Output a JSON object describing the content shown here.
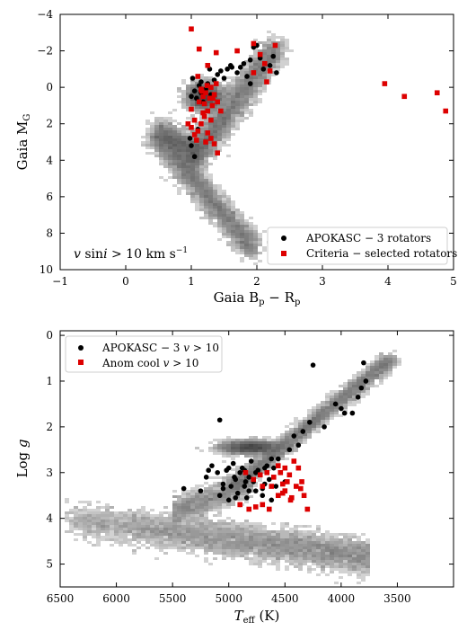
{
  "chart_data": [
    {
      "type": "scatter",
      "xlabel": "Gaia B_p − R_p",
      "ylabel": "Gaia M_G",
      "xlim": [
        -1,
        5
      ],
      "ylim": [
        10,
        -4
      ],
      "y_inverted": true,
      "xticks": [
        "−1",
        "0",
        "1",
        "2",
        "3",
        "4",
        "5"
      ],
      "yticks": [
        "−4",
        "−2",
        "0",
        "2",
        "4",
        "6",
        "8",
        "10"
      ],
      "annotation": "v sini > 10 km s⁻¹",
      "legend_position": "lower right",
      "background": "grayscale 2D density histogram (Gaia CMD: main sequence + red giant branch)",
      "series": [
        {
          "name": "APOKASC − 3 rotators",
          "marker": "circle",
          "color": "#000000",
          "points": [
            [
              1.0,
              0.5
            ],
            [
              1.05,
              0.2
            ],
            [
              1.08,
              0.6
            ],
            [
              1.12,
              -0.1
            ],
            [
              1.15,
              0.3
            ],
            [
              1.18,
              0.8
            ],
            [
              1.22,
              0.1
            ],
            [
              1.25,
              -0.2
            ],
            [
              1.3,
              0.4
            ],
            [
              1.35,
              -0.4
            ],
            [
              1.4,
              -0.7
            ],
            [
              1.45,
              -0.9
            ],
            [
              1.5,
              -0.5
            ],
            [
              1.55,
              -1.0
            ],
            [
              1.6,
              -1.2
            ],
            [
              1.7,
              -0.8
            ],
            [
              1.75,
              -1.1
            ],
            [
              1.8,
              -1.3
            ],
            [
              1.85,
              -0.6
            ],
            [
              1.9,
              -1.5
            ],
            [
              1.95,
              -2.2
            ],
            [
              2.0,
              -2.3
            ],
            [
              2.05,
              -1.6
            ],
            [
              2.1,
              -1.0
            ],
            [
              2.2,
              -1.2
            ],
            [
              2.25,
              -1.7
            ],
            [
              2.3,
              -0.8
            ],
            [
              1.9,
              -0.2
            ],
            [
              1.0,
              3.2
            ],
            [
              1.05,
              3.8
            ],
            [
              1.1,
              2.3
            ],
            [
              0.98,
              2.8
            ],
            [
              1.02,
              -0.5
            ],
            [
              1.15,
              -0.3
            ],
            [
              1.28,
              -1.0
            ],
            [
              1.62,
              -1.1
            ]
          ]
        },
        {
          "name": "Criteria − selected rotators",
          "marker": "square",
          "color": "#dd0000",
          "points": [
            [
              1.0,
              -3.2
            ],
            [
              1.12,
              -2.1
            ],
            [
              1.25,
              -1.2
            ],
            [
              1.38,
              -1.9
            ],
            [
              1.7,
              -2.0
            ],
            [
              1.95,
              -2.4
            ],
            [
              2.05,
              -1.8
            ],
            [
              2.12,
              -1.3
            ],
            [
              2.2,
              -0.9
            ],
            [
              2.28,
              -2.3
            ],
            [
              2.15,
              -0.3
            ],
            [
              1.95,
              -0.8
            ],
            [
              1.1,
              -0.6
            ],
            [
              1.15,
              0.1
            ],
            [
              1.18,
              0.5
            ],
            [
              1.2,
              0.9
            ],
            [
              1.22,
              0.3
            ],
            [
              1.25,
              1.3
            ],
            [
              1.28,
              0.6
            ],
            [
              1.3,
              0.0
            ],
            [
              1.32,
              1.0
            ],
            [
              1.35,
              0.4
            ],
            [
              1.38,
              -0.2
            ],
            [
              1.4,
              0.8
            ],
            [
              1.2,
              1.6
            ],
            [
              1.15,
              2.0
            ],
            [
              1.1,
              2.4
            ],
            [
              1.05,
              2.6
            ],
            [
              1.0,
              2.2
            ],
            [
              0.95,
              2.0
            ],
            [
              1.25,
              2.5
            ],
            [
              1.3,
              2.8
            ],
            [
              1.35,
              3.1
            ],
            [
              1.4,
              3.6
            ],
            [
              1.0,
              1.2
            ],
            [
              1.05,
              1.8
            ],
            [
              1.12,
              0.8
            ],
            [
              1.3,
              1.8
            ],
            [
              1.45,
              1.3
            ],
            [
              1.18,
              1.4
            ],
            [
              1.08,
              2.9
            ],
            [
              1.22,
              3.0
            ],
            [
              1.16,
              0.2
            ],
            [
              1.24,
              -0.1
            ],
            [
              1.33,
              0.6
            ],
            [
              3.95,
              -0.2
            ],
            [
              4.25,
              0.5
            ],
            [
              4.75,
              0.3
            ],
            [
              4.88,
              1.3
            ]
          ]
        }
      ]
    },
    {
      "type": "scatter",
      "xlabel": "T_eff (K)",
      "ylabel": "Log g",
      "xlim": [
        6500,
        3000
      ],
      "ylim": [
        5.5,
        -0.1
      ],
      "x_inverted": true,
      "y_inverted": true,
      "xticks": [
        "6500",
        "6000",
        "5500",
        "5000",
        "4500",
        "4000",
        "3500"
      ],
      "yticks": [
        "0",
        "1",
        "2",
        "3",
        "4",
        "5"
      ],
      "legend_position": "upper left",
      "background": "grayscale 2D density histogram (Kiel diagram: dwarfs + giant branch + red clump)",
      "series": [
        {
          "name": "APOKASC − 3 v > 10",
          "marker": "circle",
          "color": "#000000",
          "points": [
            [
              5400,
              3.35
            ],
            [
              5250,
              3.4
            ],
            [
              5200,
              3.1
            ],
            [
              5150,
              2.85
            ],
            [
              5100,
              3.0
            ],
            [
              5080,
              3.5
            ],
            [
              5050,
              3.25
            ],
            [
              5020,
              2.95
            ],
            [
              5000,
              3.6
            ],
            [
              4980,
              3.3
            ],
            [
              4960,
              2.8
            ],
            [
              4940,
              3.15
            ],
            [
              4920,
              3.45
            ],
            [
              4900,
              3.0
            ],
            [
              4880,
              2.9
            ],
            [
              4860,
              3.3
            ],
            [
              4840,
              3.55
            ],
            [
              4820,
              3.1
            ],
            [
              4800,
              2.75
            ],
            [
              4780,
              3.2
            ],
            [
              4760,
              3.4
            ],
            [
              4740,
              2.95
            ],
            [
              4720,
              3.05
            ],
            [
              4700,
              3.5
            ],
            [
              4680,
              3.25
            ],
            [
              4660,
              2.85
            ],
            [
              4640,
              3.15
            ],
            [
              4620,
              3.6
            ],
            [
              4600,
              2.9
            ],
            [
              4580,
              3.3
            ],
            [
              4560,
              2.7
            ],
            [
              4540,
              3.0
            ],
            [
              4500,
              3.2
            ],
            [
              4460,
              2.5
            ],
            [
              4420,
              2.2
            ],
            [
              4380,
              2.4
            ],
            [
              4340,
              2.1
            ],
            [
              4280,
              1.9
            ],
            [
              4150,
              2.0
            ],
            [
              4050,
              1.5
            ],
            [
              4000,
              1.6
            ],
            [
              3970,
              1.7
            ],
            [
              3900,
              1.7
            ],
            [
              3850,
              1.35
            ],
            [
              3820,
              1.15
            ],
            [
              3780,
              1.0
            ],
            [
              3800,
              0.6
            ],
            [
              4250,
              0.65
            ],
            [
              4620,
              2.7
            ],
            [
              5000,
              2.9
            ],
            [
              4950,
              3.1
            ],
            [
              4850,
              3.2
            ],
            [
              4700,
              3.35
            ],
            [
              4900,
              3.7
            ],
            [
              5080,
              1.85
            ],
            [
              5180,
              2.95
            ],
            [
              4820,
              3.4
            ],
            [
              4940,
              3.55
            ],
            [
              5050,
              3.35
            ],
            [
              4760,
              3.0
            ],
            [
              4680,
              2.9
            ],
            [
              4860,
              2.95
            ]
          ]
        },
        {
          "name": "Anom cool v > 10",
          "marker": "square",
          "color": "#dd0000",
          "points": [
            [
              4900,
              3.7
            ],
            [
              4820,
              3.8
            ],
            [
              4760,
              3.75
            ],
            [
              4700,
              3.7
            ],
            [
              4640,
              3.8
            ],
            [
              4560,
              3.5
            ],
            [
              4500,
              3.4
            ],
            [
              4450,
              3.6
            ],
            [
              4400,
              3.3
            ],
            [
              4350,
              3.2
            ],
            [
              4330,
              3.5
            ],
            [
              4300,
              3.8
            ],
            [
              4540,
              3.0
            ],
            [
              4500,
              2.9
            ],
            [
              4480,
              3.2
            ],
            [
              4520,
              3.25
            ],
            [
              4460,
              3.05
            ],
            [
              4420,
              2.75
            ],
            [
              4380,
              2.9
            ],
            [
              4360,
              3.35
            ],
            [
              4600,
              3.1
            ],
            [
              4660,
              3.0
            ],
            [
              4720,
              3.05
            ],
            [
              4780,
              3.15
            ],
            [
              4850,
              3.0
            ],
            [
              4560,
              2.85
            ],
            [
              4620,
              3.3
            ],
            [
              4520,
              3.45
            ],
            [
              4440,
              3.55
            ],
            [
              4700,
              3.3
            ]
          ]
        }
      ]
    }
  ]
}
